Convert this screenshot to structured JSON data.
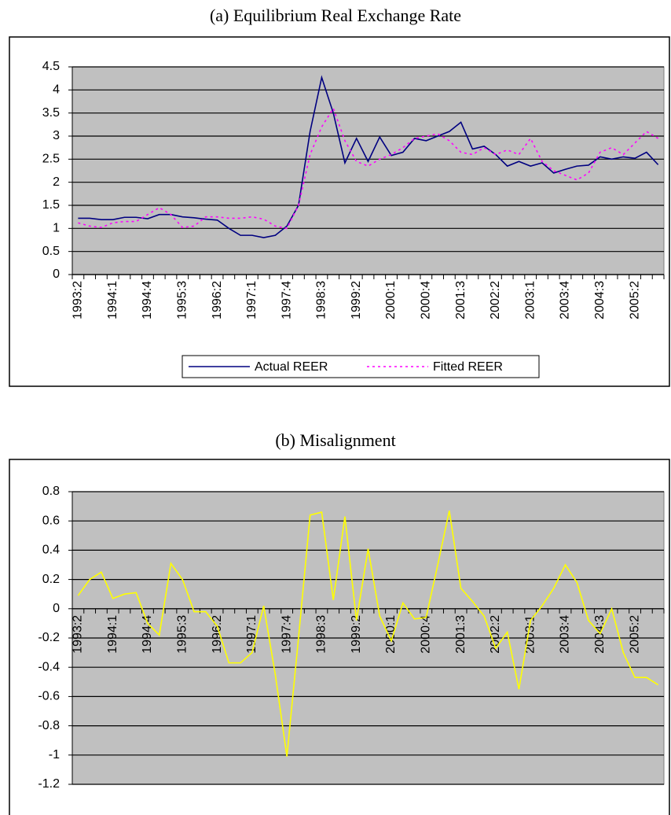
{
  "chart_data": [
    {
      "type": "line",
      "title": "(a) Equilibrium Real Exchange Rate",
      "categories": [
        "1993:2",
        null,
        null,
        "1994:1",
        null,
        null,
        "1994:4",
        null,
        null,
        "1995:3",
        null,
        null,
        "1996:2",
        null,
        null,
        "1997:1",
        null,
        null,
        "1997:4",
        null,
        null,
        "1998:3",
        null,
        null,
        "1999:2",
        null,
        null,
        "2000:1",
        null,
        null,
        "2000:4",
        null,
        null,
        "2001:3",
        null,
        null,
        "2002:2",
        null,
        null,
        "2003:1",
        null,
        null,
        "2003:4",
        null,
        null,
        "2004:3",
        null,
        null,
        "2005:2",
        null,
        null
      ],
      "series": [
        {
          "name": "Actual REER",
          "color": "#000080",
          "line_style": "solid",
          "values": [
            1.22,
            1.22,
            1.19,
            1.19,
            1.24,
            1.24,
            1.21,
            1.3,
            1.3,
            1.25,
            1.23,
            1.2,
            1.18,
            1.0,
            0.85,
            0.85,
            0.8,
            0.85,
            1.05,
            1.5,
            3.1,
            4.27,
            3.5,
            2.42,
            2.95,
            2.45,
            2.98,
            2.58,
            2.65,
            2.95,
            2.9,
            3.0,
            3.1,
            3.3,
            2.72,
            2.78,
            2.6,
            2.35,
            2.45,
            2.35,
            2.42,
            2.2,
            2.28,
            2.35,
            2.37,
            2.55,
            2.5,
            2.55,
            2.52,
            2.65,
            2.38
          ]
        },
        {
          "name": "Fitted REER",
          "color": "#ff00ff",
          "line_style": "dotted",
          "values": [
            1.12,
            1.05,
            1.02,
            1.12,
            1.15,
            1.15,
            1.3,
            1.45,
            1.3,
            1.02,
            1.05,
            1.25,
            1.25,
            1.22,
            1.22,
            1.25,
            1.2,
            1.05,
            1.0,
            1.5,
            2.6,
            3.2,
            3.6,
            2.9,
            2.45,
            2.35,
            2.5,
            2.6,
            2.75,
            2.95,
            3.0,
            3.05,
            2.9,
            2.65,
            2.6,
            2.75,
            2.6,
            2.7,
            2.6,
            2.95,
            2.45,
            2.25,
            2.15,
            2.05,
            2.2,
            2.65,
            2.75,
            2.6,
            2.85,
            3.1,
            2.95
          ]
        }
      ],
      "ylim": [
        0,
        4.5
      ],
      "yticks": [
        0,
        0.5,
        1,
        1.5,
        2,
        2.5,
        3,
        3.5,
        4,
        4.5
      ],
      "grid": true,
      "legend": "bottom"
    },
    {
      "type": "line",
      "title": "(b) Misalignment",
      "categories": [
        "1993:2",
        null,
        null,
        "1994:1",
        null,
        null,
        "1994:4",
        null,
        null,
        "1995:3",
        null,
        null,
        "1996:2",
        null,
        null,
        "1997:1",
        null,
        null,
        "1997:4",
        null,
        null,
        "1998:3",
        null,
        null,
        "1999:2",
        null,
        null,
        "2000:1",
        null,
        null,
        "2000:4",
        null,
        null,
        "2001:3",
        null,
        null,
        "2002:2",
        null,
        null,
        "2003:1",
        null,
        null,
        "2003:4",
        null,
        null,
        "2004:3",
        null,
        null,
        "2005:2",
        null,
        null
      ],
      "color": "#ffff00",
      "values": [
        0.09,
        0.2,
        0.25,
        0.07,
        0.1,
        0.11,
        -0.1,
        -0.18,
        0.31,
        0.2,
        -0.02,
        -0.02,
        -0.12,
        -0.37,
        -0.37,
        -0.3,
        0.02,
        -0.45,
        -1.01,
        -0.2,
        0.64,
        0.66,
        0.06,
        0.63,
        -0.08,
        0.41,
        -0.05,
        -0.22,
        0.04,
        -0.07,
        -0.06,
        0.3,
        0.67,
        0.14,
        0.05,
        -0.05,
        -0.27,
        -0.16,
        -0.55,
        -0.08,
        0.02,
        0.14,
        0.3,
        0.18,
        -0.08,
        -0.17,
        0.0,
        -0.3,
        -0.47,
        -0.47,
        -0.52
      ],
      "ylim": [
        -1.2,
        0.8
      ],
      "yticks": [
        -1.2,
        -1,
        -0.8,
        -0.6,
        -0.4,
        -0.2,
        0,
        0.2,
        0.4,
        0.6,
        0.8
      ],
      "grid": true
    }
  ]
}
